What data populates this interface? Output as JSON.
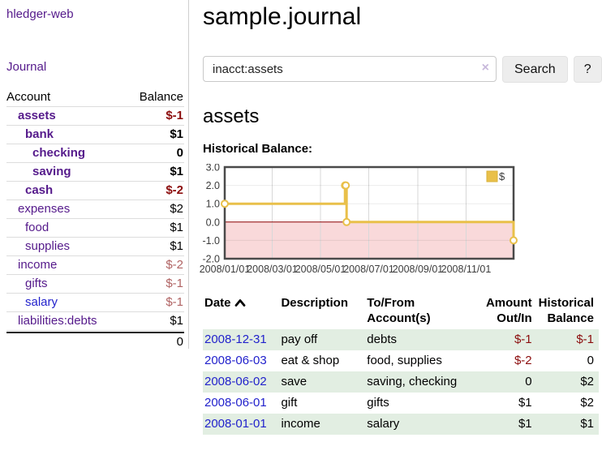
{
  "sidebar": {
    "app_title": "hledger-web",
    "nav": {
      "journal": "Journal"
    },
    "accounts_table": {
      "headers": {
        "account": "Account",
        "balance": "Balance"
      },
      "rows": [
        {
          "name": "assets",
          "depth": 0,
          "bold": true,
          "balance": "$-1",
          "balance_tone": "neg-strong"
        },
        {
          "name": "bank",
          "depth": 1,
          "bold": true,
          "balance": "$1",
          "balance_tone": "normal"
        },
        {
          "name": "checking",
          "depth": 2,
          "bold": true,
          "balance": "0",
          "balance_tone": "normal"
        },
        {
          "name": "saving",
          "depth": 2,
          "bold": true,
          "balance": "$1",
          "balance_tone": "normal"
        },
        {
          "name": "cash",
          "depth": 1,
          "bold": true,
          "balance": "$-2",
          "balance_tone": "neg-strong"
        },
        {
          "name": "expenses",
          "depth": 0,
          "bold": false,
          "balance": "$2",
          "balance_tone": "normal"
        },
        {
          "name": "food",
          "depth": 1,
          "bold": false,
          "balance": "$1",
          "balance_tone": "normal"
        },
        {
          "name": "supplies",
          "depth": 1,
          "bold": false,
          "balance": "$1",
          "balance_tone": "normal"
        },
        {
          "name": "income",
          "depth": 0,
          "bold": false,
          "balance": "$-2",
          "balance_tone": "neg-soft"
        },
        {
          "name": "gifts",
          "depth": 1,
          "bold": false,
          "balance": "$-1",
          "balance_tone": "neg-soft"
        },
        {
          "name": "salary",
          "depth": 1,
          "bold": false,
          "balance": "$-1",
          "balance_tone": "neg-soft",
          "link_color": "blue"
        },
        {
          "name": "liabilities:debts",
          "depth": 0,
          "bold": false,
          "balance": "$1",
          "balance_tone": "normal"
        }
      ],
      "total": "0"
    }
  },
  "main": {
    "title": "sample.journal",
    "search": {
      "value": "inacct:assets",
      "clear_icon": "×",
      "search_button": "Search",
      "help_button": "?"
    },
    "account_heading": "assets",
    "chart_title": "Historical Balance:"
  },
  "chart_data": {
    "type": "line",
    "title": "Historical Balance:",
    "legend": {
      "label": "$",
      "position": "top-right"
    },
    "x_range": {
      "start": "2008-01-01",
      "end": "2008-12-31",
      "total_days": 365
    },
    "ylim": [
      -2,
      3
    ],
    "yticks": [
      {
        "label": "3.0",
        "value": 3
      },
      {
        "label": "2.0",
        "value": 2
      },
      {
        "label": "1.0",
        "value": 1
      },
      {
        "label": "0.0",
        "value": 0
      },
      {
        "label": "-1.0",
        "value": -1
      },
      {
        "label": "-2.0",
        "value": -2
      }
    ],
    "xticks": [
      {
        "label": "2008/01/01",
        "day": 0
      },
      {
        "label": "2008/03/01",
        "day": 60
      },
      {
        "label": "2008/05/01",
        "day": 121
      },
      {
        "label": "2008/07/01",
        "day": 182
      },
      {
        "label": "2008/09/01",
        "day": 244
      },
      {
        "label": "2008/11/01",
        "day": 305
      }
    ],
    "series": [
      {
        "name": "$",
        "color": "#E9C04A",
        "marker_fill": "#FFFFFF",
        "steps": true,
        "points": [
          {
            "date": "2008-01-01",
            "day": 0,
            "value": 1
          },
          {
            "date": "2008-06-01",
            "day": 152,
            "value": 2
          },
          {
            "date": "2008-06-02",
            "day": 153,
            "value": 2
          },
          {
            "date": "2008-06-03",
            "day": 154,
            "value": 0
          },
          {
            "date": "2008-12-31",
            "day": 365,
            "value": -1
          }
        ]
      }
    ],
    "grid": true,
    "negative_region_fill": "#F9D9DA",
    "zero_line_color": "#8B0000",
    "plot_border_color": "#4A4A4A",
    "gridline_color": "#D8D8D8"
  },
  "register": {
    "headers": {
      "date": "Date",
      "description": "Description",
      "accounts": "To/From\nAccount(s)",
      "amount": "Amount\nOut/In",
      "balance": "Historical\nBalance"
    },
    "rows": [
      {
        "date": "2008-12-31",
        "description": "pay off",
        "accounts": "debts",
        "amount": "$-1",
        "amount_negative": true,
        "balance": "$-1",
        "balance_negative": true
      },
      {
        "date": "2008-06-03",
        "description": "eat & shop",
        "accounts": "food, supplies",
        "amount": "$-2",
        "amount_negative": true,
        "balance": "0",
        "balance_negative": false
      },
      {
        "date": "2008-06-02",
        "description": "save",
        "accounts": "saving, checking",
        "amount": "0",
        "amount_negative": false,
        "balance": "$2",
        "balance_negative": false
      },
      {
        "date": "2008-06-01",
        "description": "gift",
        "accounts": "gifts",
        "amount": "$1",
        "amount_negative": false,
        "balance": "$2",
        "balance_negative": false
      },
      {
        "date": "2008-01-01",
        "description": "income",
        "accounts": "salary",
        "amount": "$1",
        "amount_negative": false,
        "balance": "$1",
        "balance_negative": false
      }
    ]
  },
  "colors": {
    "link_purple": "#551A8B",
    "link_blue": "#2222CC",
    "negative_strong": "#8B0D0D",
    "negative_soft": "#B06363",
    "row_stripe_green": "#E2EEE2",
    "chart_gold": "#E9C04A"
  }
}
